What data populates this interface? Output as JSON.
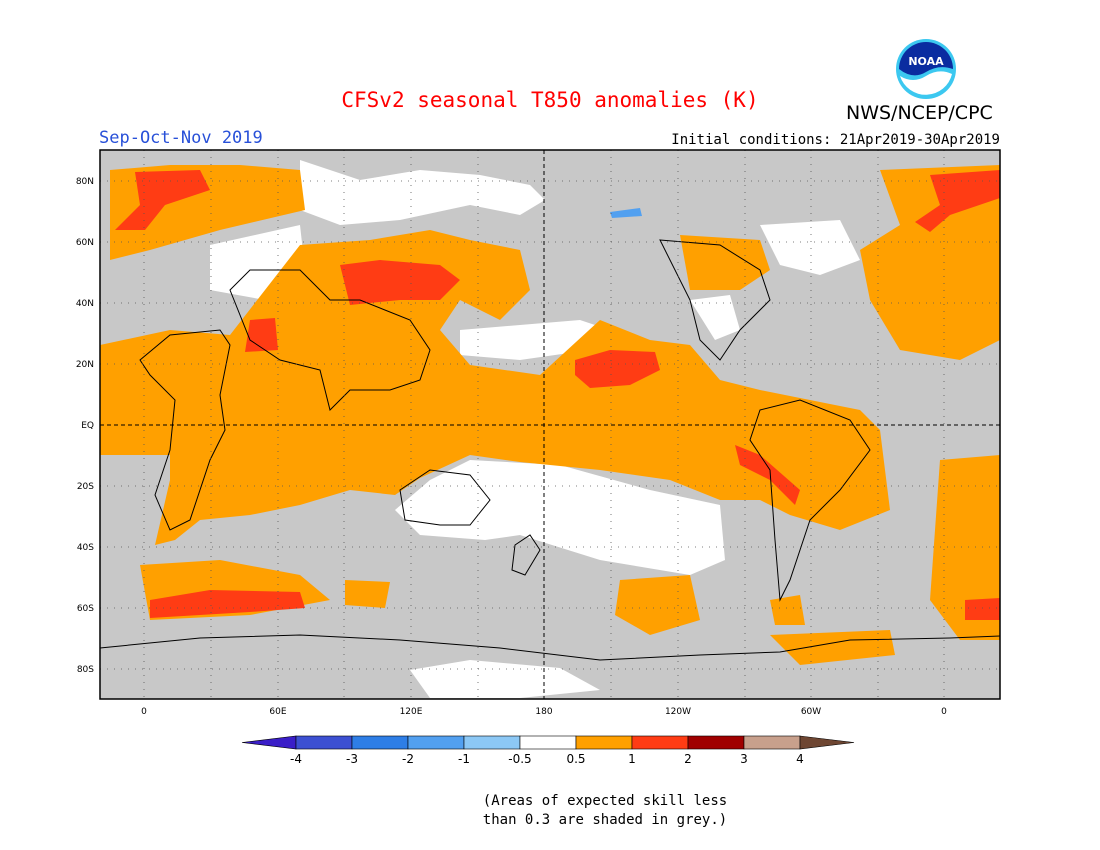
{
  "header": {
    "title": "CFSv2 seasonal T850 anomalies (K)",
    "season": "Sep-Oct-Nov 2019",
    "initial_conditions": "Initial conditions: 21Apr2019-30Apr2019",
    "agency": "NWS/NCEP/CPC",
    "logo_text": "NOAA"
  },
  "map": {
    "lat_labels": [
      "80N",
      "60N",
      "40N",
      "20N",
      "EQ",
      "20S",
      "40S",
      "60S",
      "80S"
    ],
    "lon_labels": [
      "0",
      "60E",
      "120E",
      "180",
      "120W",
      "60W",
      "0"
    ],
    "land_color": "#c8c8c8",
    "ocean_note": "grey = low skill"
  },
  "legend": {
    "labels": [
      "-4",
      "-3",
      "-2",
      "-1",
      "-0.5",
      "0.5",
      "1",
      "2",
      "3",
      "4"
    ],
    "colors": [
      "#3a1ec8",
      "#3c50d2",
      "#2e7ee6",
      "#52a0f0",
      "#8cc8f5",
      "#ffffff",
      "#ffa000",
      "#ff3c14",
      "#a00000",
      "#c8a08c",
      "#6e4632"
    ]
  },
  "footnote": {
    "line1": "(Areas of expected skill less",
    "line2": "than 0.3 are shaded in grey.)"
  }
}
